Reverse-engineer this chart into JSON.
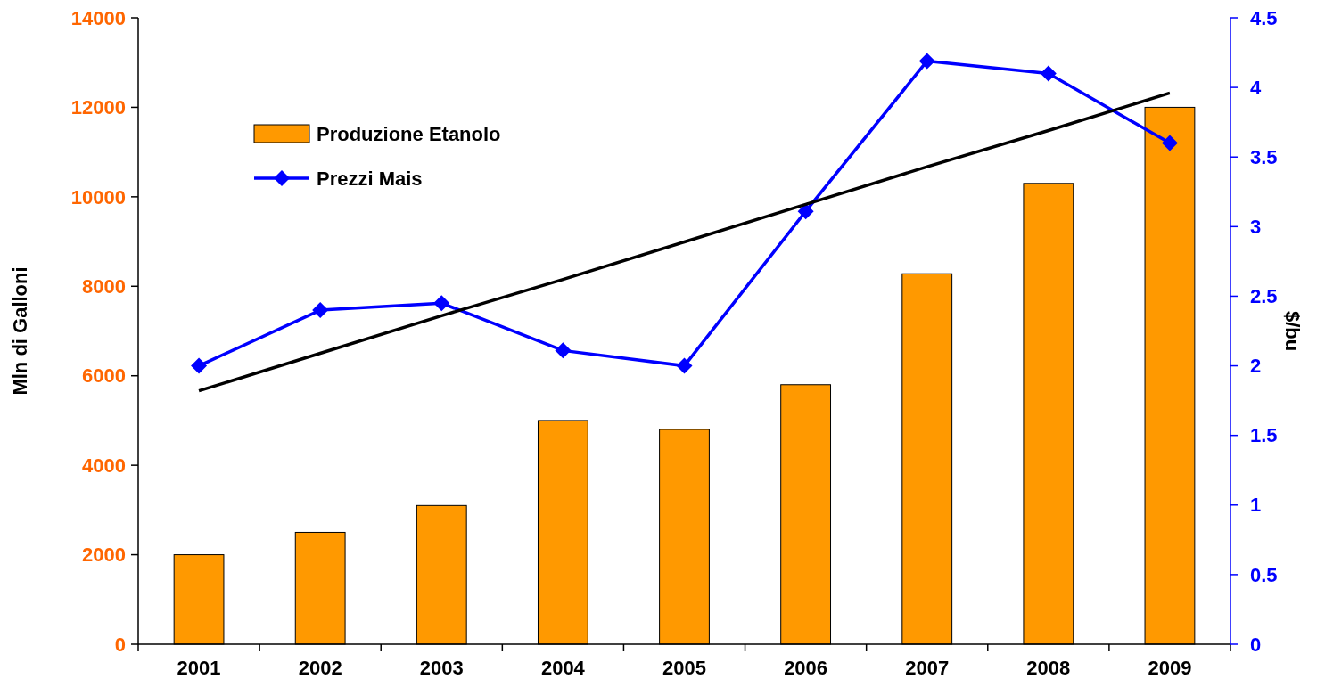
{
  "chart_data": {
    "type": "bar",
    "ylabel": "Mln di Galloni",
    "y2label": "$/bu",
    "categories": [
      "2001",
      "2002",
      "2003",
      "2004",
      "2005",
      "2006",
      "2007",
      "2008",
      "2009"
    ],
    "series": [
      {
        "name": "Produzione Etanolo",
        "color": "#ff9900",
        "values": [
          2000,
          2500,
          3100,
          5000,
          4800,
          5800,
          8280,
          10300,
          12000
        ]
      },
      {
        "name": "Prezzi Mais",
        "type": "line",
        "axis": "y2",
        "color": "#0000ff",
        "marker": "diamond",
        "values": [
          2.0,
          2.4,
          2.45,
          2.11,
          2.0,
          3.11,
          4.19,
          4.1,
          3.6
        ]
      },
      {
        "type": "line",
        "axis": "y2",
        "color": "#000000",
        "marker": "none",
        "values": [
          1.82,
          2.09,
          2.36,
          2.62,
          2.89,
          3.16,
          3.43,
          3.69,
          3.96
        ]
      }
    ],
    "ylim": [
      0,
      14000
    ],
    "yticks": [
      0,
      2000,
      4000,
      6000,
      8000,
      10000,
      12000,
      14000
    ],
    "y2lim": [
      0,
      4.5
    ],
    "y2ticks": [
      0,
      0.5,
      1,
      1.5,
      2,
      2.5,
      3,
      3.5,
      4,
      4.5
    ],
    "legend": "top left",
    "grid": false
  }
}
